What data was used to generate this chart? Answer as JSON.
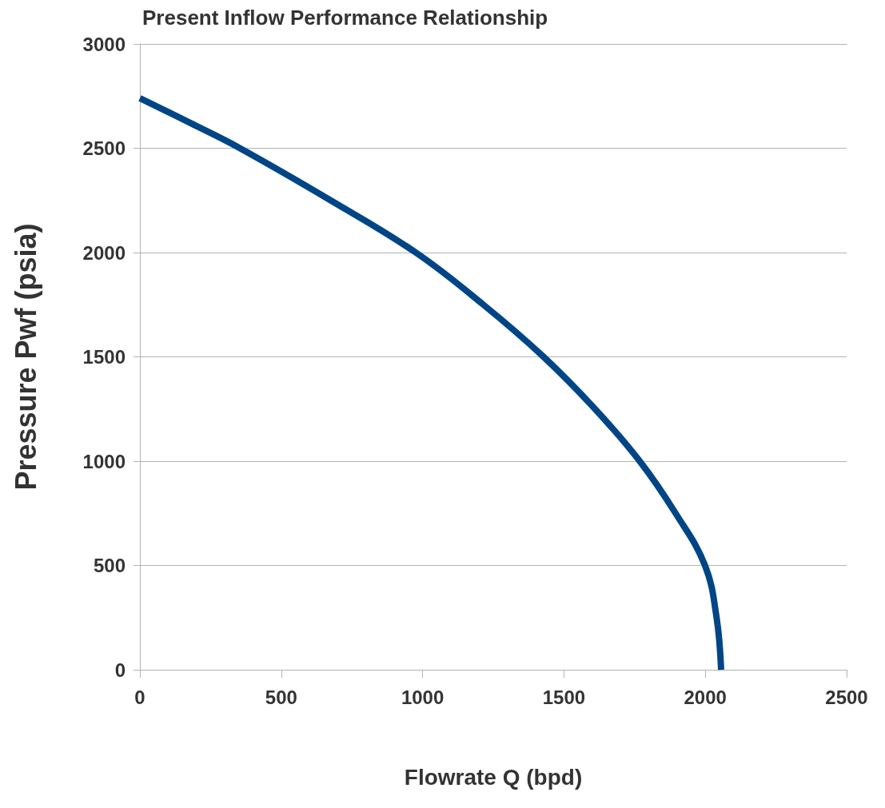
{
  "chart_data": {
    "type": "line",
    "title": "Present Inflow Performance Relationship",
    "xlabel": "Flowrate Q (bpd)",
    "ylabel": "Pressure Pwf (psia)",
    "x": [
      0,
      180,
      354,
      675,
      976,
      1215,
      1428,
      1610,
      1768,
      1895,
      1999,
      2040,
      2056
    ],
    "series": [
      {
        "color": "#004586",
        "values": [
          2740,
          2620,
          2500,
          2250,
          2000,
          1750,
          1500,
          1250,
          1000,
          750,
          500,
          250,
          0
        ]
      }
    ],
    "xlim": [
      0,
      2500
    ],
    "xticks": [
      0,
      500,
      1000,
      1500,
      2000,
      2500
    ],
    "ylim": [
      0,
      3000
    ],
    "yticks": [
      0,
      500,
      1000,
      1500,
      2000,
      2500,
      3000
    ],
    "grid": "y",
    "marker": "none",
    "line_style": "solid"
  }
}
